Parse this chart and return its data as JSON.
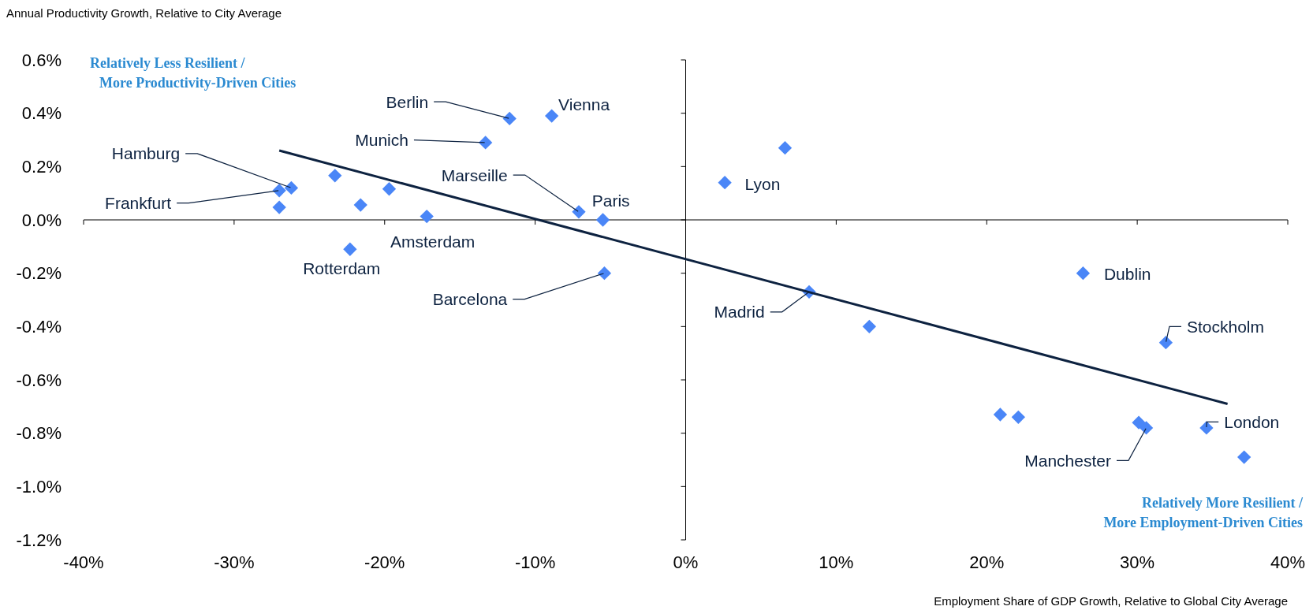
{
  "chart_data": {
    "type": "scatter",
    "ylabel": "Annual Productivity Growth, Relative to City Average",
    "xlabel": "Employment Share of GDP Growth, Relative to Global City Average",
    "xlim": [
      -40,
      40
    ],
    "ylim": [
      -1.2,
      0.6
    ],
    "xticks": [
      {
        "value": -40,
        "label": "-40%"
      },
      {
        "value": -30,
        "label": "-30%"
      },
      {
        "value": -20,
        "label": "-20%"
      },
      {
        "value": -10,
        "label": "-10%"
      },
      {
        "value": 0,
        "label": "0%"
      },
      {
        "value": 10,
        "label": "10%"
      },
      {
        "value": 20,
        "label": "20%"
      },
      {
        "value": 30,
        "label": "30%"
      },
      {
        "value": 40,
        "label": "40%"
      }
    ],
    "yticks": [
      {
        "value": 0.6,
        "label": "0.6%"
      },
      {
        "value": 0.4,
        "label": "0.4%"
      },
      {
        "value": 0.2,
        "label": "0.2%"
      },
      {
        "value": 0,
        "label": "0.0%"
      },
      {
        "value": -0.2,
        "label": "-0.2%"
      },
      {
        "value": -0.4,
        "label": "-0.4%"
      },
      {
        "value": -0.6,
        "label": "-0.6%"
      },
      {
        "value": -0.8,
        "label": "-0.8%"
      },
      {
        "value": -1.0,
        "label": "-1.0%"
      },
      {
        "value": -1.2,
        "label": "-1.2%"
      }
    ],
    "marker": "diamond",
    "series": [
      {
        "color": "#4a86f7",
        "x": [
          -11.7,
          -8.9,
          -13.3,
          -26.2,
          -27.0,
          -17.2,
          -22.3,
          -7.1,
          -5.5,
          -5.4,
          2.6,
          8.2,
          26.4,
          31.9,
          30.6,
          34.6,
          -27.0,
          -23.3,
          -21.6,
          -19.7,
          6.6,
          12.2,
          20.9,
          22.1,
          30.1,
          37.1
        ],
        "values": [
          0.38,
          0.39,
          0.29,
          0.12,
          0.11,
          0.013,
          -0.11,
          0.03,
          0.0,
          -0.2,
          0.14,
          -0.27,
          -0.2,
          -0.46,
          -0.78,
          -0.78,
          0.047,
          0.166,
          0.056,
          0.116,
          0.27,
          -0.4,
          -0.73,
          -0.74,
          -0.76,
          -0.89
        ]
      },
      {
        "type": "line",
        "marker": "none",
        "color": "#0d2240",
        "x": [
          -27,
          36
        ],
        "values": [
          0.26,
          -0.69
        ]
      }
    ],
    "annotations": [
      {
        "text": "Berlin",
        "x": -11.7,
        "y": 0.38
      },
      {
        "text": "Vienna",
        "x": -8.9,
        "y": 0.39
      },
      "Munich",
      {
        "text": "Hamburg",
        "x": -26.2,
        "y": 0.12
      },
      {
        "text": "Frankfurt",
        "x": -27.0,
        "y": 0.11
      },
      {
        "text": "Amsterdam",
        "x": -17.2,
        "y": 0.013
      },
      {
        "text": "Rotterdam",
        "x": -22.3,
        "y": -0.11
      },
      {
        "text": "Marseille",
        "x": -7.1,
        "y": 0.03
      },
      {
        "text": "Paris",
        "x": -5.5,
        "y": 0.0
      },
      {
        "text": "Barcelona",
        "x": -5.4,
        "y": -0.2
      },
      {
        "text": "Lyon",
        "x": 2.6,
        "y": 0.14
      },
      {
        "text": "Madrid",
        "x": 8.2,
        "y": -0.27
      },
      {
        "text": "Dublin",
        "x": 26.4,
        "y": -0.2
      },
      {
        "text": "Stockholm",
        "x": 31.9,
        "y": -0.46
      },
      {
        "text": "Manchester",
        "x": 30.6,
        "y": -0.78
      },
      {
        "text": "London",
        "x": 34.6,
        "y": -0.78
      },
      "Relatively Less Resilient / More Productivity-Driven Cities",
      "Relatively More Resilient / More Employment-Driven Cities"
    ]
  }
}
